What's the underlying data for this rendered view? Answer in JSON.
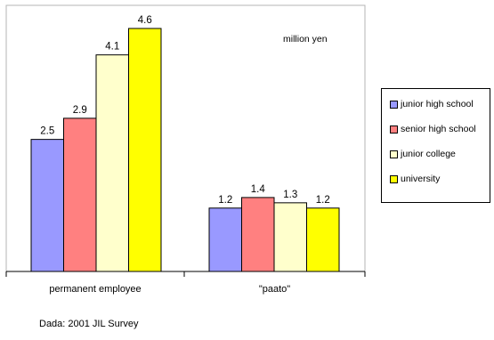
{
  "chart_data": {
    "type": "bar",
    "categories": [
      "permanent employee",
      "\"paato\""
    ],
    "series": [
      {
        "name": "junior high school",
        "values": [
          2.5,
          1.2
        ],
        "color": "#9999ff"
      },
      {
        "name": "senior high school",
        "values": [
          2.9,
          1.4
        ],
        "color": "#ff8080"
      },
      {
        "name": "junior college",
        "values": [
          4.1,
          1.3
        ],
        "color": "#ffffcc"
      },
      {
        "name": "university",
        "values": [
          4.6,
          1.2
        ],
        "color": "#ffff00"
      }
    ],
    "units_label": "million yen",
    "ylim": [
      0,
      5
    ],
    "grid": false,
    "legend_position": "right"
  },
  "source_note": "Dada: 2001 JIL Survey"
}
